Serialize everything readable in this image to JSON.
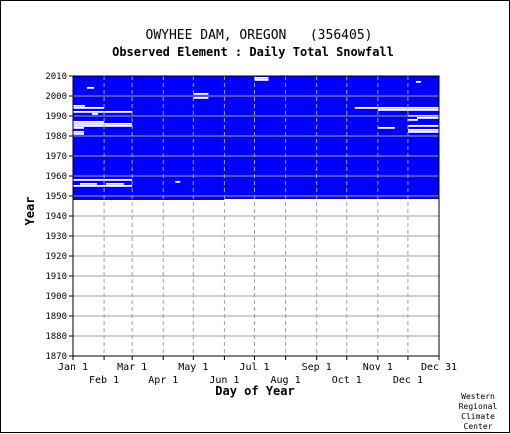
{
  "chart_data": {
    "type": "heatmap",
    "title": "OWYHEE DAM, OREGON   (356405)",
    "subtitle": "Observed Element : Daily Total Snowfall",
    "xlabel": "Day of Year",
    "ylabel": "Year",
    "credit": [
      "Western",
      "Regional",
      "Climate",
      "Center"
    ],
    "x_range_days": [
      1,
      366
    ],
    "y_range_years": [
      1870,
      2010
    ],
    "y_ticks": [
      2010,
      2000,
      1990,
      1980,
      1970,
      1960,
      1950,
      1940,
      1930,
      1920,
      1910,
      1900,
      1890,
      1880,
      1870
    ],
    "x_ticks_upper": [
      {
        "label": "Jan 1",
        "day": 1
      },
      {
        "label": "Mar 1",
        "day": 60
      },
      {
        "label": "May 1",
        "day": 121
      },
      {
        "label": "Jul 1",
        "day": 182
      },
      {
        "label": "Sep 1",
        "day": 244
      },
      {
        "label": "Nov 1",
        "day": 305
      },
      {
        "label": "Dec 31",
        "day": 366
      }
    ],
    "x_ticks_lower": [
      {
        "label": "Feb 1",
        "day": 32
      },
      {
        "label": "Apr 1",
        "day": 91
      },
      {
        "label": "Jun 1",
        "day": 152
      },
      {
        "label": "Aug 1",
        "day": 213
      },
      {
        "label": "Oct 1",
        "day": 274
      },
      {
        "label": "Dec 1",
        "day": 335
      }
    ],
    "data_color": "#0000ff",
    "grid": true,
    "observed_block": {
      "year_start": 1948,
      "year_end": 2010,
      "day_start": 1,
      "day_end": 366
    },
    "missing_segments": [
      {
        "year": 2009,
        "day_start": 182,
        "day_end": 196
      },
      {
        "year": 2008,
        "day_start": 182,
        "day_end": 196
      },
      {
        "year": 2007,
        "day_start": 343,
        "day_end": 348
      },
      {
        "year": 2004,
        "day_start": 15,
        "day_end": 22
      },
      {
        "year": 2001,
        "day_start": 121,
        "day_end": 136
      },
      {
        "year": 1999,
        "day_start": 121,
        "day_end": 136
      },
      {
        "year": 1995,
        "day_start": 1,
        "day_end": 13
      },
      {
        "year": 1994,
        "day_start": 282,
        "day_end": 366
      },
      {
        "year": 1994,
        "day_start": 1,
        "day_end": 32
      },
      {
        "year": 1993,
        "day_start": 305,
        "day_end": 366
      },
      {
        "year": 1992,
        "day_start": 1,
        "day_end": 60
      },
      {
        "year": 1991,
        "day_start": 20,
        "day_end": 26
      },
      {
        "year": 1990,
        "day_start": 335,
        "day_end": 366
      },
      {
        "year": 1989,
        "day_start": 344,
        "day_end": 366
      },
      {
        "year": 1988,
        "day_start": 335,
        "day_end": 345
      },
      {
        "year": 1987,
        "day_start": 1,
        "day_end": 32
      },
      {
        "year": 1986,
        "day_start": 1,
        "day_end": 60
      },
      {
        "year": 1985,
        "day_start": 1,
        "day_end": 60
      },
      {
        "year": 1985,
        "day_start": 335,
        "day_end": 366
      },
      {
        "year": 1984,
        "day_start": 1,
        "day_end": 12
      },
      {
        "year": 1984,
        "day_start": 305,
        "day_end": 322
      },
      {
        "year": 1983,
        "day_start": 335,
        "day_end": 366
      },
      {
        "year": 1982,
        "day_start": 1,
        "day_end": 12
      },
      {
        "year": 1982,
        "day_start": 335,
        "day_end": 366
      },
      {
        "year": 1981,
        "day_start": 1,
        "day_end": 12
      },
      {
        "year": 1958,
        "day_start": 1,
        "day_end": 60
      },
      {
        "year": 1957,
        "day_start": 103,
        "day_end": 108
      },
      {
        "year": 1956,
        "day_start": 8,
        "day_end": 25
      },
      {
        "year": 1956,
        "day_start": 34,
        "day_end": 52
      },
      {
        "year": 1955,
        "day_start": 1,
        "day_end": 60
      },
      {
        "year": 1948,
        "day_start": 152,
        "day_end": 366
      }
    ]
  }
}
